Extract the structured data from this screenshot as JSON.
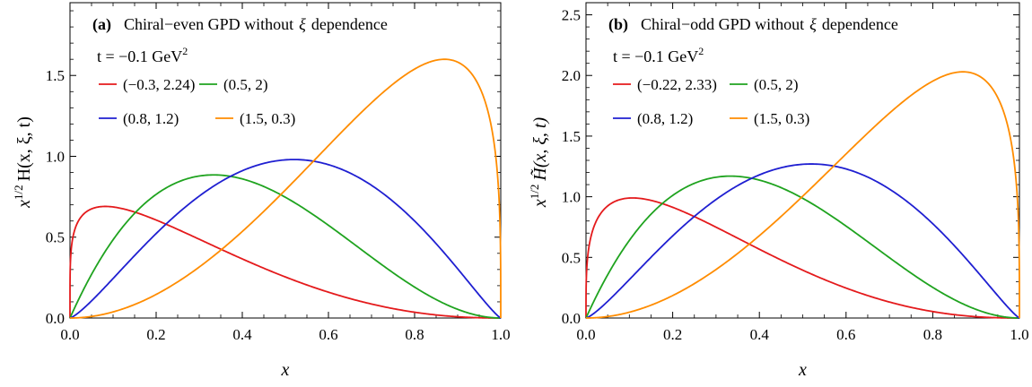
{
  "chart_data": [
    {
      "type": "line",
      "panel_tag": "(a)",
      "title": "Chiral−even GPD without",
      "title_symbol": "ξ",
      "title_tail": "dependence",
      "t_label": "t = −0.1 GeV",
      "t_label_sup": "2",
      "xlabel": "x",
      "ylabel_base": "x",
      "ylabel_sup": "1/2",
      "ylabel_func": "H(x, ξ, t)",
      "xlim": [
        0,
        1
      ],
      "ylim": [
        0,
        1.95
      ],
      "xticks": [
        "0.0",
        "0.2",
        "0.4",
        "0.6",
        "0.8",
        "1.0"
      ],
      "xtick_values": [
        0,
        0.2,
        0.4,
        0.6,
        0.8,
        1.0
      ],
      "yticks": [
        "0.0",
        "0.5",
        "1.0",
        "1.5"
      ],
      "ytick_values": [
        0,
        0.5,
        1.0,
        1.5
      ],
      "grid": false,
      "legend_placement": "upper-left",
      "series": [
        {
          "name": "(−0.3, 2.24)",
          "color": "#e41a1c",
          "alpha": -0.3,
          "beta": 2.24,
          "peak_x": 0.12,
          "peak_y": 0.69
        },
        {
          "name": "(0.5, 2)",
          "color": "#1fa31f",
          "alpha": 0.5,
          "beta": 2,
          "peak_x": 0.36,
          "peak_y": 0.885
        },
        {
          "name": "(0.8, 1.2)",
          "color": "#1f1fd1",
          "alpha": 0.8,
          "beta": 1.2,
          "peak_x": 0.54,
          "peak_y": 0.98
        },
        {
          "name": "(1.5, 0.3)",
          "color": "#ff8c00",
          "alpha": 1.5,
          "beta": 0.3,
          "peak_x": 0.87,
          "peak_y": 1.6
        }
      ]
    },
    {
      "type": "line",
      "panel_tag": "(b)",
      "title": "Chiral−odd GPD without",
      "title_symbol": "ξ",
      "title_tail": "dependence",
      "t_label": "t = −0.1 GeV",
      "t_label_sup": "2",
      "xlabel": "x",
      "ylabel_base": "x",
      "ylabel_sup": "1/2",
      "ylabel_func": "H̃(x, ξ, t)",
      "xlim": [
        0,
        1
      ],
      "ylim": [
        0,
        2.6
      ],
      "xticks": [
        "0.0",
        "0.2",
        "0.4",
        "0.6",
        "0.8",
        "1.0"
      ],
      "xtick_values": [
        0,
        0.2,
        0.4,
        0.6,
        0.8,
        1.0
      ],
      "yticks": [
        "0.0",
        "0.5",
        "1.0",
        "1.5",
        "2.0",
        "2.5"
      ],
      "ytick_values": [
        0,
        0.5,
        1.0,
        1.5,
        2.0,
        2.5
      ],
      "grid": false,
      "legend_placement": "upper-left",
      "series": [
        {
          "name": "(−0.22, 2.33)",
          "color": "#e41a1c",
          "alpha": -0.22,
          "beta": 2.33,
          "peak_x": 0.12,
          "peak_y": 0.99
        },
        {
          "name": "(0.5, 2)",
          "color": "#1fa31f",
          "alpha": 0.5,
          "beta": 2,
          "peak_x": 0.34,
          "peak_y": 1.17
        },
        {
          "name": "(0.8, 1.2)",
          "color": "#1f1fd1",
          "alpha": 0.8,
          "beta": 1.2,
          "peak_x": 0.53,
          "peak_y": 1.27
        },
        {
          "name": "(1.5, 0.3)",
          "color": "#ff8c00",
          "alpha": 1.5,
          "beta": 0.3,
          "peak_x": 0.87,
          "peak_y": 2.03
        }
      ]
    }
  ]
}
